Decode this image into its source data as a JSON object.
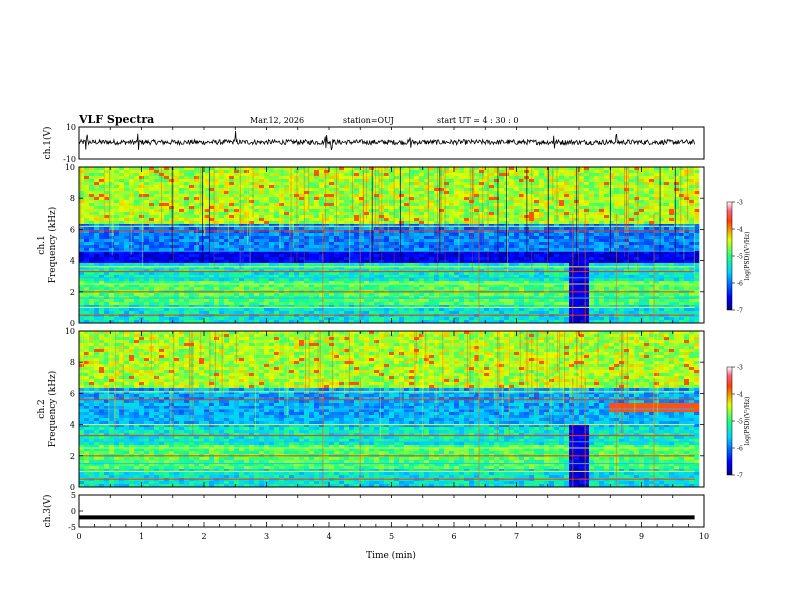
{
  "header": {
    "title": "VLF Spectra",
    "date": "Mar.12, 2026",
    "station": "station=OUJ",
    "start": "start  UT =   4 : 30 : 0"
  },
  "chart_data": [
    {
      "type": "line",
      "name": "ch1-waveform",
      "ylabel": "ch.1(V)",
      "ylim": [
        -10,
        10
      ],
      "yticks": [
        10,
        -10
      ],
      "xlim": [
        0,
        10
      ],
      "baseline": 0.5,
      "noise_amplitude": 1.6
    },
    {
      "type": "heatmap",
      "name": "ch1-spectrogram",
      "ylabel": "ch.1\nFrequency (kHz)",
      "xlim": [
        0,
        10
      ],
      "ylim": [
        0,
        10
      ],
      "yticks": [
        0,
        2,
        4,
        6,
        8,
        10
      ],
      "data_end_min": 9.85,
      "colorbar": {
        "label": "log(PSD)(V²/Hz)",
        "range": [
          -7,
          -3
        ],
        "ticks": [
          -3,
          -4,
          -5,
          -6,
          -7
        ]
      },
      "bands_khz": [
        0.5,
        1.0,
        1.6,
        2.0,
        2.5,
        2.9,
        3.3,
        3.6,
        4.6,
        5.9,
        6.2
      ],
      "events_min": [
        3.9,
        4.5,
        6.4,
        7.9,
        8.1,
        8.6,
        9.2
      ]
    },
    {
      "type": "heatmap",
      "name": "ch2-spectrogram",
      "ylabel": "ch.2\nFrequency (kHz)",
      "xlim": [
        0,
        10
      ],
      "ylim": [
        0,
        10
      ],
      "yticks": [
        0,
        2,
        4,
        6,
        8,
        10
      ],
      "data_end_min": 9.85,
      "colorbar": {
        "label": "log(PSD)(V²/Hz)",
        "range": [
          -7,
          -3
        ],
        "ticks": [
          -3,
          -4,
          -5,
          -6,
          -7
        ]
      },
      "bands_khz": [
        0.5,
        1.0,
        1.5,
        2.0,
        2.5,
        2.9,
        3.3,
        4.0,
        5.0,
        5.6,
        6.1
      ],
      "events_min": [
        3.9,
        4.5,
        6.4,
        7.9,
        8.1,
        8.6,
        9.2
      ]
    },
    {
      "type": "line",
      "name": "ch3-waveform",
      "ylabel": "ch.3(V)",
      "ylim": [
        -5,
        5
      ],
      "yticks": [
        5,
        0,
        -5
      ],
      "xlim": [
        0,
        10
      ],
      "baseline": -2,
      "xlabel": "Time (min)",
      "xticks": [
        0,
        1,
        2,
        3,
        4,
        5,
        6,
        7,
        8,
        9,
        10
      ]
    }
  ],
  "colors": {
    "axis": "#000000",
    "trace": "#000000",
    "background": "#ffffff"
  }
}
